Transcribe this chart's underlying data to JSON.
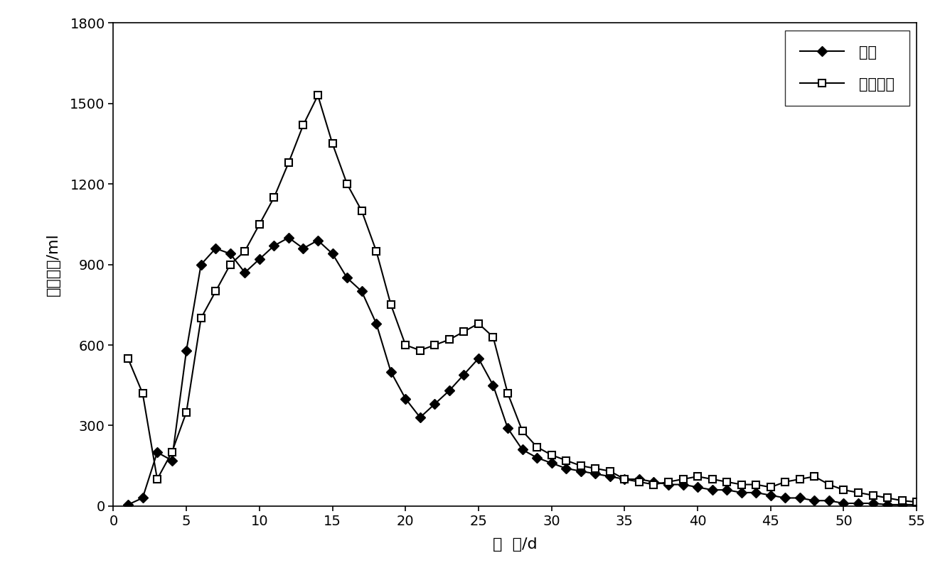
{
  "control_x": [
    1,
    2,
    3,
    4,
    5,
    6,
    7,
    8,
    9,
    10,
    11,
    12,
    13,
    14,
    15,
    16,
    17,
    18,
    19,
    20,
    21,
    22,
    23,
    24,
    25,
    26,
    27,
    28,
    29,
    30,
    31,
    32,
    33,
    34,
    35,
    36,
    37,
    38,
    39,
    40,
    41,
    42,
    43,
    44,
    45,
    46,
    47,
    48,
    49,
    50,
    51,
    52,
    53,
    54,
    55
  ],
  "control_y": [
    5,
    30,
    200,
    170,
    580,
    900,
    960,
    940,
    870,
    920,
    970,
    1000,
    960,
    990,
    940,
    850,
    800,
    680,
    500,
    400,
    330,
    380,
    430,
    490,
    550,
    450,
    290,
    210,
    180,
    160,
    140,
    130,
    120,
    110,
    100,
    100,
    90,
    80,
    80,
    70,
    60,
    60,
    50,
    50,
    40,
    30,
    30,
    20,
    20,
    10,
    10,
    10,
    5,
    5,
    5
  ],
  "steam_x": [
    1,
    2,
    3,
    4,
    5,
    6,
    7,
    8,
    9,
    10,
    11,
    12,
    13,
    14,
    15,
    16,
    17,
    18,
    19,
    20,
    21,
    22,
    23,
    24,
    25,
    26,
    27,
    28,
    29,
    30,
    31,
    32,
    33,
    34,
    35,
    36,
    37,
    38,
    39,
    40,
    41,
    42,
    43,
    44,
    45,
    46,
    47,
    48,
    49,
    50,
    51,
    52,
    53,
    54,
    55
  ],
  "steam_y": [
    550,
    420,
    100,
    200,
    350,
    700,
    800,
    900,
    950,
    1050,
    1150,
    1280,
    1420,
    1530,
    1350,
    1200,
    1100,
    950,
    750,
    600,
    580,
    600,
    620,
    650,
    680,
    630,
    420,
    280,
    220,
    190,
    170,
    150,
    140,
    130,
    100,
    90,
    80,
    90,
    100,
    110,
    100,
    90,
    80,
    80,
    70,
    90,
    100,
    110,
    80,
    60,
    50,
    40,
    30,
    20,
    15
  ],
  "xlabel": "时  间/d",
  "ylabel": "日产气量/ml",
  "legend_control": "对照",
  "legend_steam": "汽爆处理",
  "xlim": [
    0,
    55
  ],
  "ylim": [
    0,
    1800
  ],
  "yticks": [
    0,
    300,
    600,
    900,
    1200,
    1500,
    1800
  ],
  "xticks": [
    0,
    5,
    10,
    15,
    20,
    25,
    30,
    35,
    40,
    45,
    50,
    55
  ],
  "background_color": "#ffffff",
  "line_color": "#000000"
}
